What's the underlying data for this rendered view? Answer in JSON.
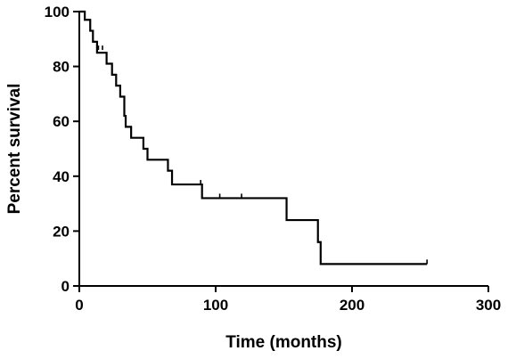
{
  "chart_data": {
    "type": "line",
    "subtype": "kaplan-meier-survival",
    "title": "",
    "xlabel": "Time (months)",
    "ylabel": "Percent survival",
    "xlim": [
      0,
      300
    ],
    "ylim": [
      0,
      100
    ],
    "xticks": [
      0,
      100,
      200,
      300
    ],
    "yticks": [
      0,
      20,
      40,
      60,
      80,
      100
    ],
    "grid": false,
    "legend": "none",
    "line_color": "#000000",
    "steps": [
      [
        0,
        100
      ],
      [
        4,
        97
      ],
      [
        8,
        93
      ],
      [
        10,
        89
      ],
      [
        13,
        85
      ],
      [
        20,
        81
      ],
      [
        24,
        77
      ],
      [
        27,
        73
      ],
      [
        30,
        69
      ],
      [
        33,
        62
      ],
      [
        34,
        58
      ],
      [
        38,
        54
      ],
      [
        47,
        50
      ],
      [
        50,
        46
      ],
      [
        65,
        42
      ],
      [
        68,
        37
      ],
      [
        90,
        32
      ],
      [
        152,
        24
      ],
      [
        175,
        16
      ],
      [
        177,
        8
      ],
      [
        255,
        8
      ]
    ],
    "censored": [
      [
        14,
        86
      ],
      [
        17,
        86
      ],
      [
        89,
        37
      ],
      [
        103,
        32
      ],
      [
        119,
        32
      ],
      [
        255,
        8
      ]
    ]
  }
}
